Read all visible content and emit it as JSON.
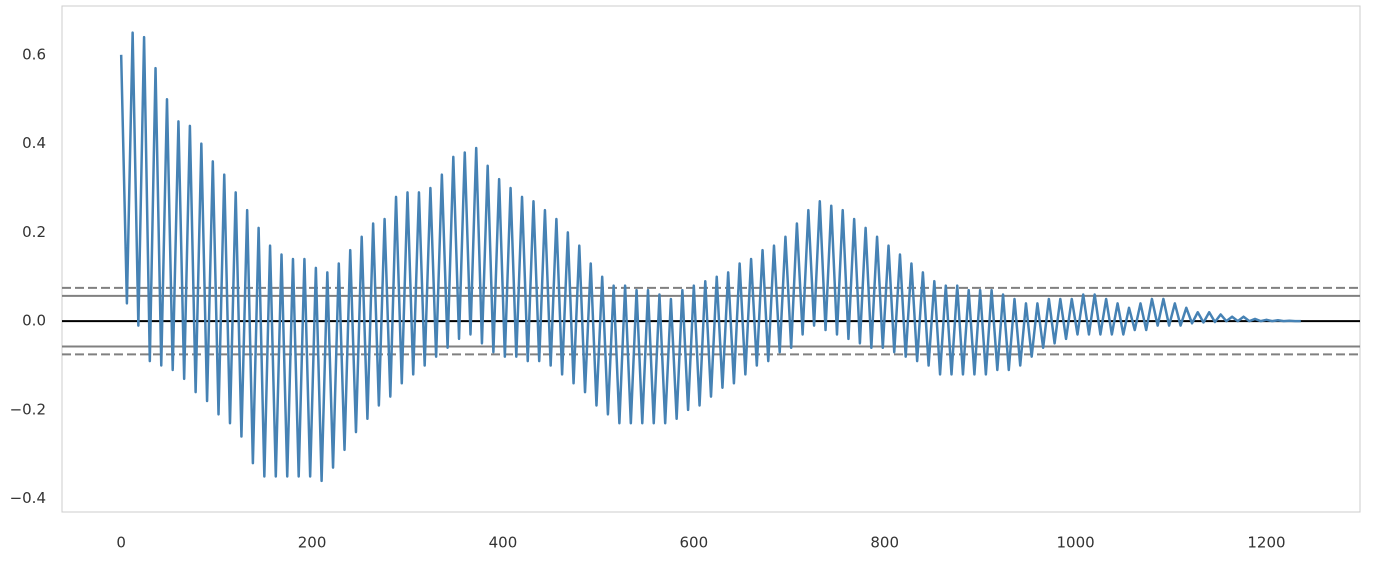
{
  "chart_data": {
    "type": "line",
    "x": [
      0,
      6,
      12,
      18,
      24,
      30,
      36,
      42,
      48,
      54,
      60,
      66,
      72,
      78,
      84,
      90,
      96,
      102,
      108,
      114,
      120,
      126,
      132,
      138,
      144,
      150,
      156,
      162,
      168,
      174,
      180,
      186,
      192,
      198,
      204,
      210,
      216,
      222,
      228,
      234,
      240,
      246,
      252,
      258,
      264,
      270,
      276,
      282,
      288,
      294,
      300,
      306,
      312,
      318,
      324,
      330,
      336,
      342,
      348,
      354,
      360,
      366,
      372,
      378,
      384,
      390,
      396,
      402,
      408,
      414,
      420,
      426,
      432,
      438,
      444,
      450,
      456,
      462,
      468,
      474,
      480,
      486,
      492,
      498,
      504,
      510,
      516,
      522,
      528,
      534,
      540,
      546,
      552,
      558,
      564,
      570,
      576,
      582,
      588,
      594,
      600,
      606,
      612,
      618,
      624,
      630,
      636,
      642,
      648,
      654,
      660,
      666,
      672,
      678,
      684,
      690,
      696,
      702,
      708,
      714,
      720,
      726,
      732,
      738,
      744,
      750,
      756,
      762,
      768,
      774,
      780,
      786,
      792,
      798,
      804,
      810,
      816,
      822,
      828,
      834,
      840,
      846,
      852,
      858,
      864,
      870,
      876,
      882,
      888,
      894,
      900,
      906,
      912,
      918,
      924,
      930,
      936,
      942,
      948,
      954,
      960,
      966,
      972,
      978,
      984,
      990,
      996,
      1002,
      1008,
      1014,
      1020,
      1026,
      1032,
      1038,
      1044,
      1050,
      1056,
      1062,
      1068,
      1074,
      1080,
      1086,
      1092,
      1098,
      1104,
      1110,
      1116,
      1122,
      1128,
      1134,
      1140,
      1146,
      1152,
      1158,
      1164,
      1170,
      1176,
      1182,
      1188,
      1194,
      1200,
      1206,
      1212,
      1218,
      1224,
      1230,
      1236
    ],
    "series": [
      {
        "color": "#4682b4",
        "values": [
          0.6,
          0.04,
          0.65,
          -0.01,
          0.64,
          -0.09,
          0.57,
          -0.1,
          0.5,
          -0.11,
          0.45,
          -0.13,
          0.44,
          -0.16,
          0.4,
          -0.18,
          0.36,
          -0.21,
          0.33,
          -0.23,
          0.29,
          -0.26,
          0.25,
          -0.32,
          0.21,
          -0.35,
          0.17,
          -0.35,
          0.15,
          -0.35,
          0.14,
          -0.35,
          0.14,
          -0.35,
          0.12,
          -0.36,
          0.11,
          -0.33,
          0.13,
          -0.29,
          0.16,
          -0.25,
          0.19,
          -0.22,
          0.22,
          -0.19,
          0.23,
          -0.17,
          0.28,
          -0.14,
          0.29,
          -0.12,
          0.29,
          -0.1,
          0.3,
          -0.08,
          0.33,
          -0.06,
          0.37,
          -0.04,
          0.38,
          -0.03,
          0.39,
          -0.05,
          0.35,
          -0.07,
          0.32,
          -0.08,
          0.3,
          -0.08,
          0.28,
          -0.09,
          0.27,
          -0.09,
          0.25,
          -0.1,
          0.23,
          -0.12,
          0.2,
          -0.14,
          0.17,
          -0.16,
          0.13,
          -0.19,
          0.1,
          -0.21,
          0.08,
          -0.23,
          0.08,
          -0.23,
          0.07,
          -0.23,
          0.07,
          -0.23,
          0.06,
          -0.23,
          0.05,
          -0.22,
          0.07,
          -0.2,
          0.08,
          -0.19,
          0.09,
          -0.17,
          0.1,
          -0.15,
          0.11,
          -0.14,
          0.13,
          -0.12,
          0.14,
          -0.1,
          0.16,
          -0.09,
          0.17,
          -0.07,
          0.19,
          -0.06,
          0.22,
          -0.03,
          0.25,
          -0.01,
          0.27,
          -0.02,
          0.26,
          -0.03,
          0.25,
          -0.04,
          0.23,
          -0.05,
          0.21,
          -0.06,
          0.19,
          -0.06,
          0.17,
          -0.07,
          0.15,
          -0.08,
          0.13,
          -0.09,
          0.11,
          -0.1,
          0.09,
          -0.12,
          0.08,
          -0.12,
          0.08,
          -0.12,
          0.07,
          -0.12,
          0.07,
          -0.12,
          0.07,
          -0.11,
          0.06,
          -0.11,
          0.05,
          -0.1,
          0.04,
          -0.08,
          0.04,
          -0.06,
          0.05,
          -0.05,
          0.05,
          -0.04,
          0.05,
          -0.03,
          0.06,
          -0.03,
          0.06,
          -0.03,
          0.05,
          -0.03,
          0.04,
          -0.03,
          0.03,
          -0.02,
          0.04,
          -0.02,
          0.05,
          -0.01,
          0.05,
          -0.01,
          0.04,
          -0.01,
          0.03,
          -0.005,
          0.02,
          -0.003,
          0.02,
          -0.002,
          0.015,
          0,
          0.01,
          0,
          0.01,
          0,
          0.005,
          0,
          0.003,
          0,
          0.002,
          0,
          0.001,
          0,
          0
        ]
      }
    ],
    "hlines": [
      {
        "value": 0,
        "color": "#000000",
        "dash": false
      },
      {
        "value": 0.057,
        "color": "#808080",
        "dash": false
      },
      {
        "value": -0.057,
        "color": "#808080",
        "dash": false
      },
      {
        "value": 0.075,
        "color": "#808080",
        "dash": true
      },
      {
        "value": -0.075,
        "color": "#808080",
        "dash": true
      }
    ],
    "xlim": [
      -62,
      1298
    ],
    "xticks": [
      0,
      200,
      400,
      600,
      800,
      1000,
      1200
    ],
    "ylim": [
      -0.43,
      0.71
    ],
    "yticks": [
      {
        "value": -0.4,
        "label": "−0.4"
      },
      {
        "value": -0.2,
        "label": "−0.2"
      },
      {
        "value": 0,
        "label": "0.0"
      },
      0.2,
      0.4,
      0.6
    ],
    "grid": false
  }
}
